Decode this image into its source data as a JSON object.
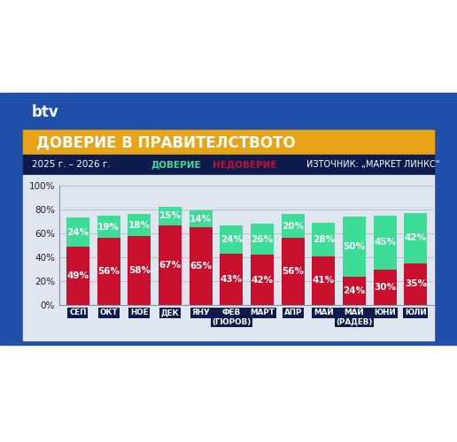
{
  "logo": "btv",
  "chart_data": {
    "type": "bar",
    "stacked": true,
    "data_labels": true,
    "grid": true,
    "title": "ДОВЕРИЕ В ПРАВИТЕЛСТВОТО",
    "subtitle": "2025 г. – 2026 г.",
    "source": "ИЗТОЧНИК: „МАРКЕТ ЛИНКС“",
    "categories": [
      "СЕП",
      "ОКТ",
      "НОЕ",
      "ДЕК",
      "ЯНУ",
      "ФЕВ\n(ГЮРОВ)",
      "МАРТ",
      "АПР",
      "МАЙ",
      "МАЙ\n(РАДЕВ)",
      "ЮНИ",
      "ЮЛИ"
    ],
    "series": [
      {
        "name": "НЕДОВЕРИЕ",
        "color": "#c8102e",
        "values": [
          49,
          56,
          58,
          67,
          65,
          43,
          42,
          56,
          41,
          24,
          30,
          35
        ],
        "value_labels": [
          "49%",
          "56%",
          "58%",
          "67%",
          "65%",
          "43%",
          "42%",
          "56%",
          "41%",
          "24%",
          "30%",
          "35%"
        ]
      },
      {
        "name": "ДОВЕРИЕ",
        "color": "#3ddc97",
        "values": [
          24,
          19,
          18,
          15,
          14,
          24,
          26,
          20,
          28,
          50,
          45,
          42
        ],
        "value_labels": [
          "24%",
          "19%",
          "18%",
          "15%",
          "14%",
          "24%",
          "26%",
          "20%",
          "28%",
          "50%",
          "45%",
          "42%"
        ]
      }
    ],
    "ylim": [
      0,
      100
    ],
    "yticks": [
      {
        "value": 0,
        "label": "0%"
      },
      {
        "value": 20,
        "label": "20%"
      },
      {
        "value": 40,
        "label": "40%"
      },
      {
        "value": 60,
        "label": "60%"
      },
      {
        "value": 80,
        "label": "80%"
      },
      {
        "value": 100,
        "label": "100%"
      }
    ]
  }
}
